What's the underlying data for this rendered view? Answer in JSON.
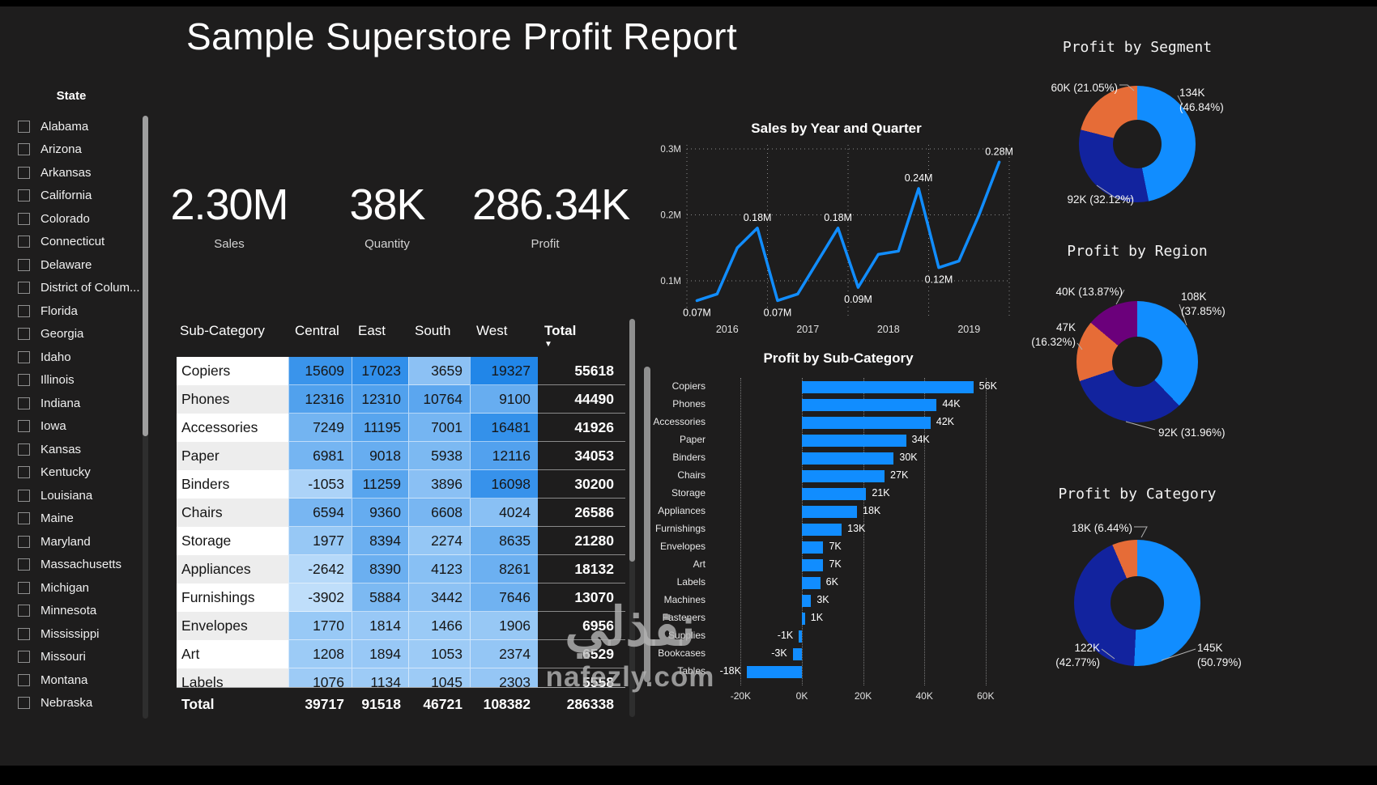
{
  "page_title": "Sample Superstore Profit Report",
  "colors": {
    "background": "#1E1D1D",
    "accent_blue": "#118DFF",
    "dark_blue": "#12239E",
    "orange": "#E66C37",
    "purple": "#6B007B",
    "heat_low": "#BFDEFA",
    "heat_high": "#2186E8"
  },
  "state_slicer": {
    "header": "State",
    "items": [
      "Alabama",
      "Arizona",
      "Arkansas",
      "California",
      "Colorado",
      "Connecticut",
      "Delaware",
      "District of Colum...",
      "Florida",
      "Georgia",
      "Idaho",
      "Illinois",
      "Indiana",
      "Iowa",
      "Kansas",
      "Kentucky",
      "Louisiana",
      "Maine",
      "Maryland",
      "Massachusetts",
      "Michigan",
      "Minnesota",
      "Mississippi",
      "Missouri",
      "Montana",
      "Nebraska"
    ]
  },
  "kpis": [
    {
      "value": "2.30M",
      "label": "Sales"
    },
    {
      "value": "38K",
      "label": "Quantity"
    },
    {
      "value": "286.34K",
      "label": "Profit"
    }
  ],
  "matrix": {
    "columns": [
      "Sub-Category",
      "Central",
      "East",
      "South",
      "West",
      "Total"
    ],
    "sorted_by": "Total",
    "heat_min": -3902,
    "heat_max": 19327,
    "rows": [
      {
        "name": "Copiers",
        "values": [
          15609,
          17023,
          3659,
          19327
        ],
        "total": 55618
      },
      {
        "name": "Phones",
        "values": [
          12316,
          12310,
          10764,
          9100
        ],
        "total": 44490
      },
      {
        "name": "Accessories",
        "values": [
          7249,
          11195,
          7001,
          16481
        ],
        "total": 41926
      },
      {
        "name": "Paper",
        "values": [
          6981,
          9018,
          5938,
          12116
        ],
        "total": 34053
      },
      {
        "name": "Binders",
        "values": [
          -1053,
          11259,
          3896,
          16098
        ],
        "total": 30200
      },
      {
        "name": "Chairs",
        "values": [
          6594,
          9360,
          6608,
          4024
        ],
        "total": 26586
      },
      {
        "name": "Storage",
        "values": [
          1977,
          8394,
          2274,
          8635
        ],
        "total": 21280
      },
      {
        "name": "Appliances",
        "values": [
          -2642,
          8390,
          4123,
          8261
        ],
        "total": 18132
      },
      {
        "name": "Furnishings",
        "values": [
          -3902,
          5884,
          3442,
          7646
        ],
        "total": 13070
      },
      {
        "name": "Envelopes",
        "values": [
          1770,
          1814,
          1466,
          1906
        ],
        "total": 6956
      },
      {
        "name": "Art",
        "values": [
          1208,
          1894,
          1053,
          2374
        ],
        "total": 6529
      },
      {
        "name": "Labels",
        "values": [
          1076,
          1134,
          1045,
          2303
        ],
        "total": 5558
      }
    ],
    "grand_total": {
      "label": "Total",
      "values": [
        39717,
        91518,
        46721,
        108382
      ],
      "total": 286338
    }
  },
  "chart_data": [
    {
      "type": "line",
      "title": "Sales by Year and Quarter",
      "x_years": [
        "2016",
        "2017",
        "2018",
        "2019"
      ],
      "quarters_per_year": 4,
      "values_M": [
        0.07,
        0.08,
        0.15,
        0.18,
        0.07,
        0.08,
        0.13,
        0.18,
        0.09,
        0.14,
        0.145,
        0.24,
        0.12,
        0.13,
        0.2,
        0.28
      ],
      "point_labels": [
        "0.07M",
        null,
        null,
        "0.18M",
        "0.07M",
        null,
        null,
        "0.18M",
        "0.09M",
        null,
        null,
        "0.24M",
        "0.12M",
        null,
        null,
        "0.28M"
      ],
      "y_ticks": [
        "0.3M",
        "0.2M",
        "0.1M"
      ],
      "ylim_M": [
        0,
        0.3
      ],
      "grid": "dotted",
      "line_color": "#118DFF"
    },
    {
      "type": "bar",
      "title": "Profit by Sub-Category",
      "orientation": "horizontal",
      "categories": [
        "Copiers",
        "Phones",
        "Accessories",
        "Paper",
        "Binders",
        "Chairs",
        "Storage",
        "Appliances",
        "Furnishings",
        "Envelopes",
        "Art",
        "Labels",
        "Machines",
        "Fasteners",
        "Supplies",
        "Bookcases",
        "Tables"
      ],
      "values_K": [
        56,
        44,
        42,
        34,
        30,
        27,
        21,
        18,
        13,
        7,
        7,
        6,
        3,
        1,
        -1,
        -3,
        -18
      ],
      "value_labels": [
        "56K",
        "44K",
        "42K",
        "34K",
        "30K",
        "27K",
        "21K",
        "18K",
        "13K",
        "7K",
        "7K",
        "6K",
        "3K",
        "1K",
        "-1K",
        "-3K",
        "-18K"
      ],
      "x_ticks": [
        "-20K",
        "0K",
        "20K",
        "40K",
        "60K"
      ],
      "x_tick_values_K": [
        -20,
        0,
        20,
        40,
        60
      ],
      "xlim_K": [
        -20,
        60
      ],
      "bar_color": "#118DFF"
    },
    {
      "type": "pie",
      "donut": true,
      "title": "Profit by Segment",
      "slices": [
        {
          "label": "134K (46.84%)",
          "pct": 46.84,
          "color": "#118DFF"
        },
        {
          "label": "92K (32.12%)",
          "pct": 32.12,
          "color": "#12239E"
        },
        {
          "label": "60K (21.05%)",
          "pct": 21.05,
          "color": "#E66C37"
        }
      ]
    },
    {
      "type": "pie",
      "donut": true,
      "title": "Profit by Region",
      "slices": [
        {
          "label": "108K (37.85%)",
          "pct": 37.85,
          "color": "#118DFF"
        },
        {
          "label": "92K (31.96%)",
          "pct": 31.96,
          "color": "#12239E"
        },
        {
          "label": "47K (16.32%)",
          "pct": 16.32,
          "color": "#E66C37"
        },
        {
          "label": "40K (13.87%)",
          "pct": 13.87,
          "color": "#6B007B"
        }
      ]
    },
    {
      "type": "pie",
      "donut": true,
      "title": "Profit by Category",
      "slices": [
        {
          "label": "145K (50.79%)",
          "pct": 50.79,
          "color": "#118DFF"
        },
        {
          "label": "122K (42.77%)",
          "pct": 42.77,
          "color": "#12239E"
        },
        {
          "label": "18K (6.44%)",
          "pct": 6.44,
          "color": "#E66C37"
        }
      ]
    }
  ],
  "watermark": {
    "line1": "نفذلي",
    "line2": "nafezly.com"
  }
}
